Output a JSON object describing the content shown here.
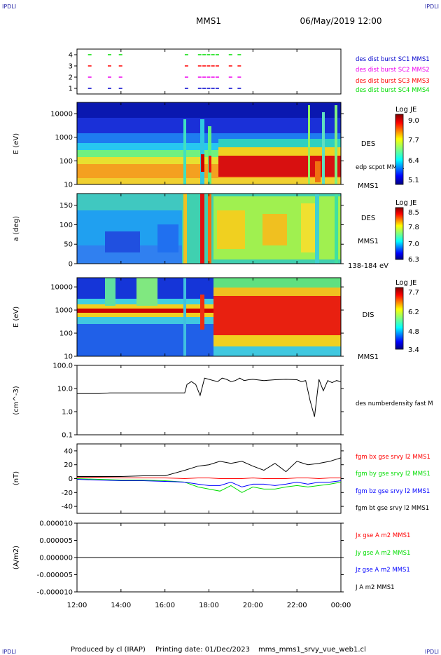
{
  "header": {
    "corner_left": "IPDLI",
    "corner_right": "IPDLI",
    "spacecraft": "MMS1",
    "datetime": "06/May/2019 12:00"
  },
  "footer": {
    "produced_by": "Produced by cl (IRAP)",
    "printing_date": "Printing date: 01/Dec/2023",
    "filename": "mms_mms1_srvy_vue_web1.cl",
    "corner_left": "IPDLI",
    "corner_right": "IPDLI"
  },
  "time_axis": {
    "tick_labels": [
      "12:00",
      "14:00",
      "16:00",
      "18:00",
      "20:00",
      "22:00",
      "00:00"
    ],
    "hours": [
      0,
      2,
      4,
      6,
      8,
      10,
      12
    ],
    "range_hours": [
      0,
      12
    ]
  },
  "colors": {
    "red": "#ff0000",
    "green": "#00dd00",
    "blue": "#0000ff",
    "magenta": "#ee00ee",
    "black": "#000000",
    "legend_blue": "#0000cc"
  },
  "chart_data": [
    {
      "type": "scatter",
      "panel": "burst",
      "ylim": [
        0.5,
        4.5
      ],
      "ytick_labels": [
        "1",
        "2",
        "3",
        "4"
      ],
      "legend": [
        {
          "label": "des dist burst SC1 MMS1",
          "color": "#0000cc"
        },
        {
          "label": "des dist burst SC2 MMS2",
          "color": "#ee00ee"
        },
        {
          "label": "des dist burst SC3 MMS3",
          "color": "#ff0000"
        },
        {
          "label": "des dist burst SC4 MMS4",
          "color": "#00dd00"
        }
      ],
      "series": [
        {
          "level": 1,
          "color": "#0000cc",
          "t": [
            0.5,
            1.4,
            1.9,
            4.9,
            5.5,
            5.7,
            5.9,
            6.1,
            6.3,
            6.9,
            7.3
          ]
        },
        {
          "level": 2,
          "color": "#ee00ee",
          "t": [
            0.5,
            1.4,
            1.9,
            4.9,
            5.5,
            5.7,
            5.9,
            6.1,
            6.3,
            6.9,
            7.3
          ]
        },
        {
          "level": 3,
          "color": "#ff0000",
          "t": [
            0.5,
            1.4,
            1.9,
            4.9,
            5.5,
            5.7,
            5.9,
            6.1,
            6.3,
            6.9,
            7.3
          ]
        },
        {
          "level": 4,
          "color": "#00dd00",
          "t": [
            0.5,
            1.4,
            1.9,
            4.9,
            5.5,
            5.7,
            5.9,
            6.1,
            6.3,
            6.9,
            7.3
          ]
        }
      ]
    },
    {
      "type": "heatmap",
      "panel": "des_energy",
      "ylabel": "E (eV)",
      "yscale": "log",
      "ylim": [
        10,
        30000
      ],
      "ytick_values": [
        10,
        100,
        1000,
        10000
      ],
      "ytick_labels": [
        "10",
        "100",
        "1000",
        "10000"
      ],
      "label": "DES",
      "overlay_label": "edp scpot MMS1",
      "sc_label": "MMS1",
      "colorbar": {
        "title": "Log JE",
        "tick_labels": [
          "9.0",
          "7.7",
          "6.4",
          "5.1"
        ],
        "range": [
          5.1,
          9.0
        ]
      }
    },
    {
      "type": "heatmap",
      "panel": "des_pitch",
      "ylabel": "a (deg)",
      "ylim": [
        0,
        180
      ],
      "ytick_values": [
        0,
        50,
        100,
        150
      ],
      "ytick_labels": [
        "0",
        "50",
        "100",
        "150"
      ],
      "label": "DES",
      "sc_label": "MMS1",
      "energy_band": "138-184 eV",
      "colorbar": {
        "title": "Log JE",
        "tick_labels": [
          "8.5",
          "7.8",
          "7.0",
          "6.3"
        ],
        "range": [
          6.3,
          8.5
        ]
      }
    },
    {
      "type": "heatmap",
      "panel": "dis_energy",
      "ylabel": "E (eV)",
      "yscale": "log",
      "ylim": [
        10,
        25000
      ],
      "ytick_values": [
        10,
        100,
        1000,
        10000
      ],
      "ytick_labels": [
        "10",
        "100",
        "1000",
        "10000"
      ],
      "label": "DIS",
      "sc_label": "MMS1",
      "colorbar": {
        "title": "Log JE",
        "tick_labels": [
          "7.7",
          "6.2",
          "4.8",
          "3.4"
        ],
        "range": [
          3.4,
          7.7
        ]
      }
    },
    {
      "type": "line",
      "panel": "density",
      "ylabel": "(cm^-3)",
      "yscale": "log",
      "ylim": [
        0.1,
        100
      ],
      "ytick_values": [
        0.1,
        1,
        10,
        100
      ],
      "ytick_labels": [
        "0.1",
        "1.0",
        "10.0",
        "100.0"
      ],
      "series": [
        {
          "name": "des numberdensity fast M",
          "color": "#000000",
          "t": [
            0,
            0.5,
            1,
            1.5,
            2,
            2.5,
            3,
            3.5,
            4,
            4.5,
            4.9,
            5.0,
            5.2,
            5.4,
            5.6,
            5.8,
            6.0,
            6.2,
            6.4,
            6.6,
            6.8,
            7.0,
            7.2,
            7.4,
            7.6,
            7.8,
            8.0,
            8.5,
            9.0,
            9.5,
            10.0,
            10.2,
            10.4,
            10.6,
            10.8,
            11.0,
            11.2,
            11.4,
            11.6,
            11.8,
            12.0
          ],
          "values": [
            6,
            6,
            6,
            6.5,
            6.5,
            6.5,
            6.5,
            6.5,
            6.5,
            6.5,
            6.5,
            15,
            20,
            15,
            5,
            28,
            25,
            22,
            20,
            28,
            25,
            20,
            22,
            28,
            22,
            24,
            25,
            22,
            24,
            25,
            24,
            20,
            22,
            3,
            0.6,
            25,
            8,
            22,
            18,
            22,
            20
          ]
        }
      ]
    },
    {
      "type": "line",
      "panel": "fgm",
      "ylabel": "(nT)",
      "ylim": [
        -50,
        50
      ],
      "ytick_values": [
        -40,
        -20,
        0,
        20,
        40
      ],
      "ytick_labels": [
        "-40",
        "-20",
        "0",
        "20",
        "40"
      ],
      "series": [
        {
          "name": "fgm bx gse srvy l2 MMS1",
          "color": "#ff0000",
          "t": [
            0,
            1,
            2,
            3,
            4,
            4.9,
            5.5,
            6,
            6.5,
            7,
            7.5,
            8,
            8.5,
            9,
            9.5,
            10,
            10.5,
            11,
            11.5,
            12
          ],
          "values": [
            2,
            2,
            1,
            1,
            1,
            0,
            1,
            1,
            0,
            0,
            0,
            1,
            0,
            0,
            0,
            1,
            1,
            0,
            1,
            1
          ]
        },
        {
          "name": "fgm by gse srvy l2 MMS1",
          "color": "#00dd00",
          "t": [
            0,
            1,
            2,
            3,
            4,
            4.9,
            5.5,
            6,
            6.5,
            7,
            7.5,
            8,
            8.5,
            9,
            9.5,
            10,
            10.5,
            11,
            11.5,
            12
          ],
          "values": [
            0,
            -1,
            -2,
            -2,
            -3,
            -5,
            -12,
            -15,
            -18,
            -10,
            -20,
            -12,
            -15,
            -15,
            -12,
            -10,
            -12,
            -10,
            -8,
            -5
          ]
        },
        {
          "name": "fgm bz gse srvy l2 MMS1",
          "color": "#0000ff",
          "t": [
            0,
            1,
            2,
            3,
            4,
            4.9,
            5.5,
            6,
            6.5,
            7,
            7.5,
            8,
            8.5,
            9,
            9.5,
            10,
            10.5,
            11,
            11.5,
            12
          ],
          "values": [
            -1,
            -2,
            -3,
            -3,
            -4,
            -5,
            -8,
            -10,
            -10,
            -5,
            -12,
            -8,
            -8,
            -10,
            -8,
            -5,
            -8,
            -5,
            -5,
            -3
          ]
        },
        {
          "name": "fgm bt gse srvy l2 MMS1",
          "color": "#000000",
          "t": [
            0,
            1,
            2,
            3,
            4,
            4.9,
            5.5,
            6,
            6.5,
            7,
            7.5,
            8,
            8.5,
            9,
            9.5,
            10,
            10.5,
            11,
            11.5,
            12
          ],
          "values": [
            3,
            3,
            3,
            4,
            4,
            12,
            18,
            20,
            25,
            22,
            25,
            18,
            12,
            22,
            10,
            25,
            20,
            22,
            25,
            30
          ]
        }
      ]
    },
    {
      "type": "line",
      "panel": "current",
      "ylabel": "(A/m2)",
      "ylim": [
        -1e-05,
        1e-05
      ],
      "ytick_values": [
        -1e-05,
        -5e-06,
        0,
        5e-06,
        1e-05
      ],
      "ytick_labels": [
        "-0.000010",
        "-0.000005",
        "0.000000",
        "0.000005",
        "0.000010"
      ],
      "series": [
        {
          "name": "Jx gse A m2 MMS1",
          "color": "#ff0000",
          "t": [
            0,
            6,
            12
          ],
          "values": [
            0,
            0,
            0
          ]
        },
        {
          "name": "Jy gse A m2 MMS1",
          "color": "#00dd00",
          "t": [
            0,
            6,
            12
          ],
          "values": [
            0,
            0,
            0
          ]
        },
        {
          "name": "Jz gse A m2 MMS1",
          "color": "#0000ff",
          "t": [
            0,
            6,
            12
          ],
          "values": [
            0,
            0,
            0
          ]
        },
        {
          "name": "J A m2 MMS1",
          "color": "#000000",
          "t": [
            0,
            6,
            12
          ],
          "values": [
            0,
            0,
            0
          ]
        }
      ]
    }
  ]
}
